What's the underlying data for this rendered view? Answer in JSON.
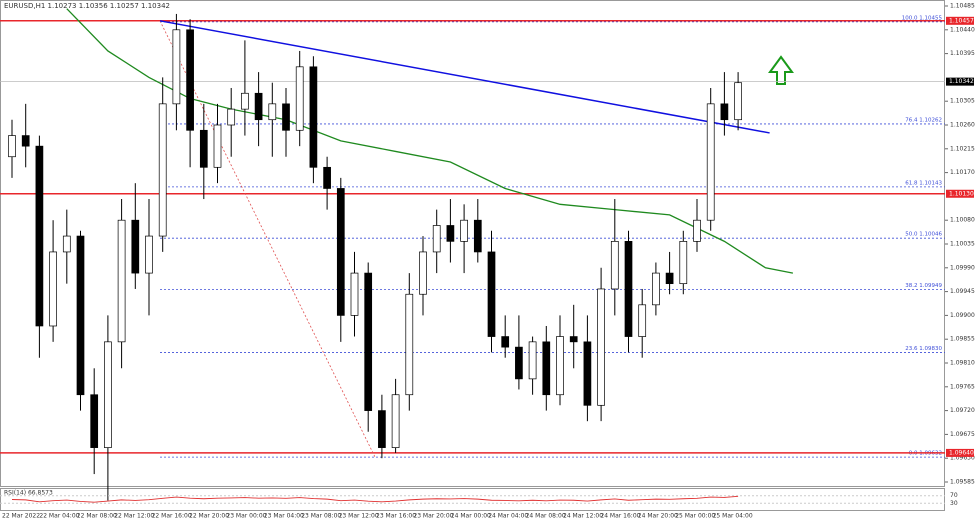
{
  "chart_data": {
    "type": "candlestick",
    "title": "EURUSD,H1 1.10273 1.10356 1.10257 1.10342",
    "ylim": [
      1.09585,
      1.10485
    ],
    "yticks": [
      {
        "value": 1.10485,
        "label": "1.10485"
      },
      {
        "value": 1.1044,
        "label": "1.10440"
      },
      {
        "value": 1.10395,
        "label": "1.10395"
      },
      {
        "value": 1.10305,
        "label": "1.10305"
      },
      {
        "value": 1.1026,
        "label": "1.10260"
      },
      {
        "value": 1.10215,
        "label": "1.10215"
      },
      {
        "value": 1.1017,
        "label": "1.10170"
      },
      {
        "value": 1.1008,
        "label": "1.10080"
      },
      {
        "value": 1.10035,
        "label": "1.10035"
      },
      {
        "value": 1.0999,
        "label": "1.09990"
      },
      {
        "value": 1.09945,
        "label": "1.09945"
      },
      {
        "value": 1.099,
        "label": "1.09900"
      },
      {
        "value": 1.09855,
        "label": "1.09855"
      },
      {
        "value": 1.0981,
        "label": "1.09810"
      },
      {
        "value": 1.09765,
        "label": "1.09765"
      },
      {
        "value": 1.0972,
        "label": "1.09720"
      },
      {
        "value": 1.09675,
        "label": "1.09675"
      },
      {
        "value": 1.0963,
        "label": "1.09630"
      },
      {
        "value": 1.09585,
        "label": "1.09585"
      }
    ],
    "price_marks": [
      {
        "value": 1.10457,
        "label": "1.10457",
        "color": "#e8262b"
      },
      {
        "value": 1.10342,
        "label": "1.10342",
        "color": "#000000"
      },
      {
        "value": 1.1013,
        "label": "1.10130",
        "color": "#e8262b"
      },
      {
        "value": 1.0964,
        "label": "1.09640",
        "color": "#e8262b"
      }
    ],
    "fib_levels": [
      {
        "value": 1.10455,
        "label": "100.0 1.10455"
      },
      {
        "value": 1.10262,
        "label": "76.4 1.10262"
      },
      {
        "value": 1.10143,
        "label": "61.8 1.10143"
      },
      {
        "value": 1.10046,
        "label": "50.0 1.10046"
      },
      {
        "value": 1.09949,
        "label": "38.2 1.09949"
      },
      {
        "value": 1.0983,
        "label": "23.6 1.09830"
      },
      {
        "value": 1.09632,
        "label": "0.0 1.09632"
      }
    ],
    "fib_color": "#3f4fd8",
    "trendline": {
      "x": [
        10.8,
        55.3
      ],
      "values": [
        1.10457,
        1.10245
      ],
      "color": "#1010e0"
    },
    "fib_diagonal": {
      "x": [
        10.8,
        26.5
      ],
      "values": [
        1.10457,
        1.09632
      ],
      "color": "#e05050"
    },
    "ma": {
      "x": [
        4,
        7,
        10,
        13,
        16,
        20,
        24,
        28,
        32,
        36,
        40,
        44,
        48,
        52,
        55,
        57
      ],
      "values": [
        1.1048,
        1.104,
        1.1035,
        1.1031,
        1.1029,
        1.1027,
        1.1023,
        1.1021,
        1.1019,
        1.1014,
        1.1011,
        1.101,
        1.1009,
        1.1004,
        1.0999,
        1.0998
      ],
      "color": "#1f8a1f"
    },
    "candles": [
      [
        1.102,
        1.1027,
        1.1016,
        1.1024
      ],
      [
        1.1024,
        1.103,
        1.1018,
        1.1022
      ],
      [
        1.1022,
        1.1024,
        1.0982,
        1.0988
      ],
      [
        1.0988,
        1.1008,
        1.0985,
        1.1002
      ],
      [
        1.1002,
        1.101,
        1.0996,
        1.1005
      ],
      [
        1.1005,
        1.1006,
        1.0972,
        1.0975
      ],
      [
        1.0975,
        1.098,
        1.096,
        1.0965
      ],
      [
        1.0965,
        1.099,
        1.0955,
        1.0985
      ],
      [
        1.0985,
        1.1012,
        1.098,
        1.1008
      ],
      [
        1.1008,
        1.1015,
        1.0995,
        1.0998
      ],
      [
        1.0998,
        1.1012,
        1.099,
        1.1005
      ],
      [
        1.1005,
        1.1035,
        1.1002,
        1.103
      ],
      [
        1.103,
        1.1047,
        1.1025,
        1.1044
      ],
      [
        1.1044,
        1.1046,
        1.1018,
        1.1025
      ],
      [
        1.1025,
        1.103,
        1.1012,
        1.1018
      ],
      [
        1.1018,
        1.103,
        1.1015,
        1.1026
      ],
      [
        1.1026,
        1.1033,
        1.102,
        1.1029
      ],
      [
        1.1029,
        1.1042,
        1.1024,
        1.1032
      ],
      [
        1.1032,
        1.1036,
        1.1022,
        1.1027
      ],
      [
        1.1027,
        1.1034,
        1.102,
        1.103
      ],
      [
        1.103,
        1.1033,
        1.102,
        1.1025
      ],
      [
        1.1025,
        1.104,
        1.1022,
        1.1037
      ],
      [
        1.1037,
        1.1039,
        1.1015,
        1.1018
      ],
      [
        1.1018,
        1.102,
        1.101,
        1.1014
      ],
      [
        1.1014,
        1.1016,
        1.0985,
        1.099
      ],
      [
        1.099,
        1.1002,
        1.0986,
        1.0998
      ],
      [
        1.0998,
        1.1,
        1.0968,
        1.0972
      ],
      [
        1.0972,
        1.0975,
        1.0963,
        1.0965
      ],
      [
        1.0965,
        1.0978,
        1.0964,
        1.0975
      ],
      [
        1.0975,
        1.0998,
        1.0972,
        1.0994
      ],
      [
        1.0994,
        1.1005,
        1.099,
        1.1002
      ],
      [
        1.1002,
        1.101,
        1.0998,
        1.1007
      ],
      [
        1.1007,
        1.1012,
        1.1,
        1.1004
      ],
      [
        1.1004,
        1.1011,
        1.0998,
        1.1008
      ],
      [
        1.1008,
        1.1012,
        1.1,
        1.1002
      ],
      [
        1.1002,
        1.1006,
        1.0983,
        1.0986
      ],
      [
        1.0986,
        1.099,
        1.0982,
        1.0984
      ],
      [
        1.0984,
        1.099,
        1.0976,
        1.0978
      ],
      [
        1.0978,
        1.0986,
        1.0975,
        1.0985
      ],
      [
        1.0985,
        1.0988,
        1.0972,
        1.0975
      ],
      [
        1.0975,
        1.099,
        1.0973,
        1.0986
      ],
      [
        1.0986,
        1.0992,
        1.098,
        1.0985
      ],
      [
        1.0985,
        1.099,
        1.097,
        1.0973
      ],
      [
        1.0973,
        1.0999,
        1.097,
        1.0995
      ],
      [
        1.0995,
        1.1012,
        1.099,
        1.1004
      ],
      [
        1.1004,
        1.1006,
        1.0983,
        1.0986
      ],
      [
        1.0986,
        1.0995,
        1.0982,
        1.0992
      ],
      [
        1.0992,
        1.1,
        1.099,
        1.0998
      ],
      [
        1.0998,
        1.1002,
        1.0994,
        1.0996
      ],
      [
        1.0996,
        1.1006,
        1.0994,
        1.1004
      ],
      [
        1.1004,
        1.1012,
        1.1002,
        1.1008
      ],
      [
        1.1008,
        1.1033,
        1.1006,
        1.103
      ],
      [
        1.103,
        1.1036,
        1.1024,
        1.1027
      ],
      [
        1.1027,
        1.1036,
        1.1025,
        1.1034
      ]
    ],
    "rsi": {
      "label": "RSI(14) 66.8573",
      "ylim": [
        0,
        100
      ],
      "yticks": [
        30,
        70
      ],
      "color": "#e03030",
      "values": [
        50,
        48,
        38,
        44,
        47,
        40,
        36,
        42,
        48,
        45,
        49,
        56,
        63,
        57,
        54,
        57,
        58,
        60,
        57,
        58,
        56,
        60,
        55,
        52,
        44,
        47,
        41,
        38,
        42,
        48,
        52,
        54,
        53,
        55,
        52,
        46,
        45,
        43,
        46,
        43,
        47,
        46,
        42,
        48,
        53,
        46,
        49,
        52,
        51,
        54,
        56,
        63,
        61,
        67
      ]
    },
    "time_labels": [
      "22 Mar 2022",
      "22 Mar 04:00",
      "22 Mar 08:00",
      "22 Mar 12:00",
      "22 Mar 16:00",
      "22 Mar 20:00",
      "23 Mar 00:00",
      "23 Mar 04:00",
      "23 Mar 08:00",
      "23 Mar 12:00",
      "23 Mar 16:00",
      "23 Mar 20:00",
      "24 Mar 00:00",
      "24 Mar 04:00",
      "24 Mar 08:00",
      "24 Mar 12:00",
      "24 Mar 16:00",
      "24 Mar 20:00",
      "25 Mar 00:00",
      "25 Mar 04:00"
    ]
  }
}
